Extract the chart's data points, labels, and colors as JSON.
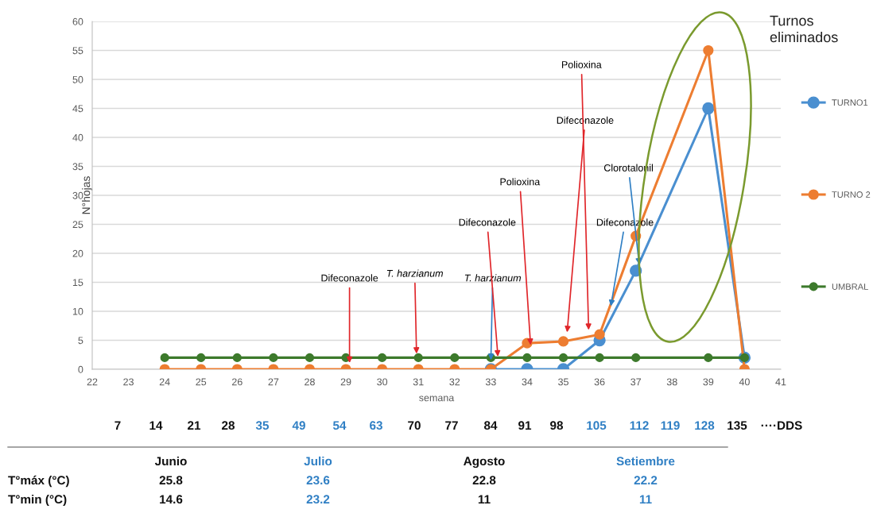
{
  "chart_data": {
    "type": "line",
    "xlabel": "semana",
    "ylabel": "N°hojas",
    "x": [
      24,
      25,
      26,
      27,
      28,
      29,
      30,
      31,
      32,
      33,
      34,
      35,
      36,
      37,
      39,
      40
    ],
    "series": [
      {
        "name": "TURNO1",
        "color": "#4a8fd0",
        "values": [
          null,
          null,
          null,
          null,
          null,
          null,
          null,
          null,
          null,
          0,
          0,
          0,
          5,
          17,
          45,
          2
        ]
      },
      {
        "name": "TURNO 2",
        "color": "#ed7d31",
        "values": [
          0,
          0,
          0,
          0,
          0,
          0,
          0,
          0,
          0,
          0,
          4.5,
          4.8,
          6,
          23,
          55,
          0
        ]
      },
      {
        "name": "UMBRAL",
        "color": "#3d7a2c",
        "values": [
          2,
          2,
          2,
          2,
          2,
          2,
          2,
          2,
          2,
          2,
          2,
          2,
          2,
          2,
          2,
          2
        ]
      }
    ],
    "xlim": [
      22,
      41
    ],
    "xticks": [
      22,
      23,
      24,
      25,
      26,
      27,
      28,
      29,
      30,
      31,
      32,
      33,
      34,
      35,
      36,
      37,
      38,
      39,
      40,
      41
    ],
    "ylim": [
      0,
      60
    ],
    "yticks": [
      0,
      5,
      10,
      15,
      20,
      25,
      30,
      35,
      40,
      45,
      50,
      55,
      60
    ],
    "grid": "y",
    "legend": "right",
    "marker": "circle",
    "line_style": "solid",
    "annotations": [
      {
        "text": "Difeconazole",
        "x": 29.1,
        "y": 0.7
      },
      {
        "text": "T. harzianum",
        "x": 30.95,
        "y": 2.3
      },
      {
        "text": "T. harzianum",
        "x": 33.0,
        "y": 1.2
      },
      {
        "text": "Difeconazole",
        "x": 33.2,
        "y": 1.8
      },
      {
        "text": "Polioxina",
        "x": 34.1,
        "y": 3.8
      },
      {
        "text": "Difeconazole",
        "x": 35.1,
        "y": 6
      },
      {
        "text": "Polioxina",
        "x": 35.7,
        "y": 6.4
      },
      {
        "text": "Difeconazole",
        "x": 36.3,
        "y": 10.5
      },
      {
        "text": "Clorotalonil",
        "x": 37.1,
        "y": 17.7
      },
      "Turnos eliminados",
      "7",
      "14",
      "21",
      "28",
      "35",
      "49",
      "54",
      "63",
      "70",
      "77",
      "84",
      "91",
      "98",
      "105",
      "112",
      "119",
      "128",
      "135",
      "····DDS",
      "Junio",
      "Julio",
      "Agosto",
      "Setiembre",
      "T°máx (°C)",
      "25.8",
      "23.6",
      "22.8",
      "22.2",
      "T°min (°C)",
      "14.6",
      "23.2",
      "11",
      "11"
    ]
  }
}
